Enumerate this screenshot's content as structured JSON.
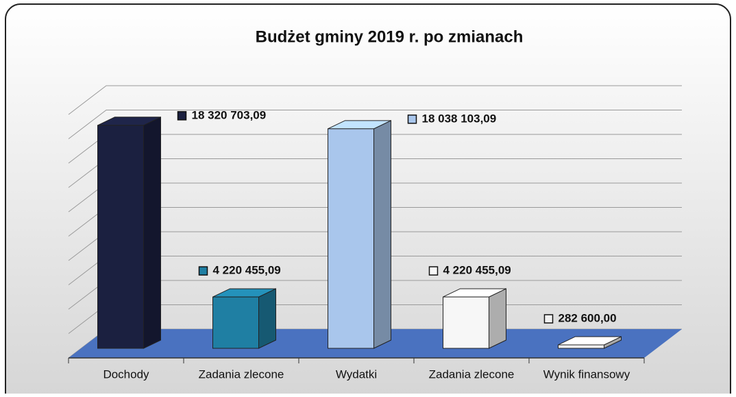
{
  "chart_data": {
    "type": "bar3d",
    "title": "Budżet gminy 2019 r. po zmianach",
    "categories": [
      "Dochody",
      "Zadania zlecone",
      "Wydatki",
      "Zadania zlecone",
      "Wynik finansowy"
    ],
    "values": [
      18320703.09,
      4220455.09,
      18038103.09,
      4220455.09,
      282600.0
    ],
    "value_labels": [
      "18 320 703,09",
      "4 220 455,09",
      "18 038 103,09",
      "4 220 455,09",
      "282 600,00"
    ],
    "colors": [
      "#1b2040",
      "#1f7fa3",
      "#a9c6ec",
      "#f7f7f7",
      "#f2f2f2"
    ],
    "ylim": [
      0,
      20000000
    ],
    "yticks": [
      0,
      2000000,
      4000000,
      6000000,
      8000000,
      10000000,
      12000000,
      14000000,
      16000000,
      18000000,
      20000000
    ],
    "grid": true
  }
}
